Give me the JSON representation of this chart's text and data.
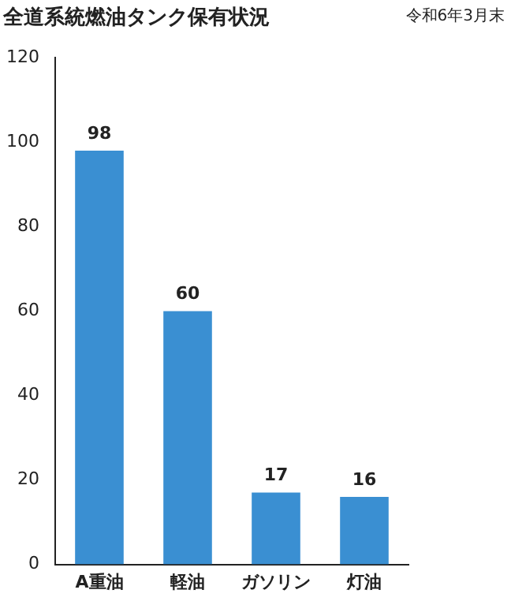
{
  "chart_data": {
    "type": "bar",
    "title": "全道系統燃油タンク保有状況",
    "annotations": [
      "令和6年3月末"
    ],
    "categories": [
      "A重油",
      "軽油",
      "ガソリン",
      "灯油"
    ],
    "values": [
      98,
      60,
      17,
      16
    ],
    "color": "#3a8fd2",
    "ylim": [
      0,
      120
    ],
    "yticks": [
      0,
      20,
      40,
      60,
      80,
      100,
      120
    ],
    "grid": false,
    "legend": false,
    "data_labels": true
  }
}
